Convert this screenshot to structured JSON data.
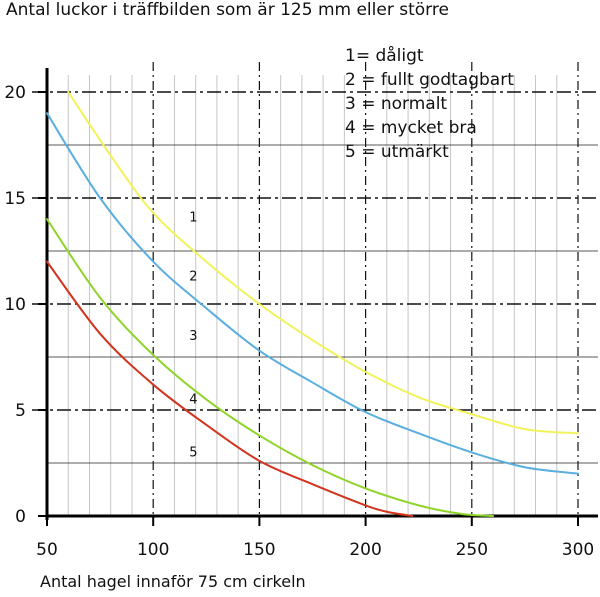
{
  "chart_data": {
    "type": "line",
    "title": "Antal luckor i träffbilden som är 125 mm eller större",
    "xlabel": "Antal hagel innaför 75 cm cirkeln",
    "ylabel": "",
    "xlim": [
      50,
      300
    ],
    "ylim": [
      0,
      21
    ],
    "xticks": [
      50,
      100,
      150,
      200,
      250,
      300
    ],
    "yticks": [
      0,
      5,
      10,
      15,
      20
    ],
    "grid": true,
    "legend_placement": "top-right",
    "legend": [
      "1= dåligt",
      "2 = fullt godtagbart",
      "3 = normalt",
      "4 = mycket bra",
      "5 = utmärkt"
    ],
    "curve_labels": [
      "1",
      "2",
      "3",
      "4",
      "5"
    ],
    "series": [
      {
        "color": "#f2f25a",
        "x": [
          60,
          80,
          100,
          125,
          150,
          175,
          200,
          225,
          250,
          275,
          300
        ],
        "y": [
          20.0,
          17.0,
          14.3,
          12.0,
          10.0,
          8.3,
          6.8,
          5.6,
          4.8,
          4.1,
          3.9
        ]
      },
      {
        "color": "#5aaee0",
        "x": [
          50,
          75,
          100,
          125,
          150,
          175,
          200,
          225,
          250,
          275,
          300
        ],
        "y": [
          19.0,
          15.0,
          12.0,
          9.8,
          7.8,
          6.3,
          4.9,
          3.9,
          3.0,
          2.3,
          2.0
        ]
      },
      {
        "color": "#8fd42a",
        "x": [
          50,
          75,
          100,
          125,
          150,
          175,
          200,
          225,
          245,
          260
        ],
        "y": [
          14.0,
          10.3,
          7.6,
          5.5,
          3.8,
          2.4,
          1.3,
          0.5,
          0.1,
          0.0
        ]
      },
      {
        "color": "#d2341e",
        "x": [
          50,
          75,
          100,
          125,
          150,
          175,
          200,
          210,
          222
        ],
        "y": [
          12.0,
          8.6,
          6.2,
          4.3,
          2.6,
          1.5,
          0.5,
          0.2,
          0.0
        ]
      }
    ]
  }
}
